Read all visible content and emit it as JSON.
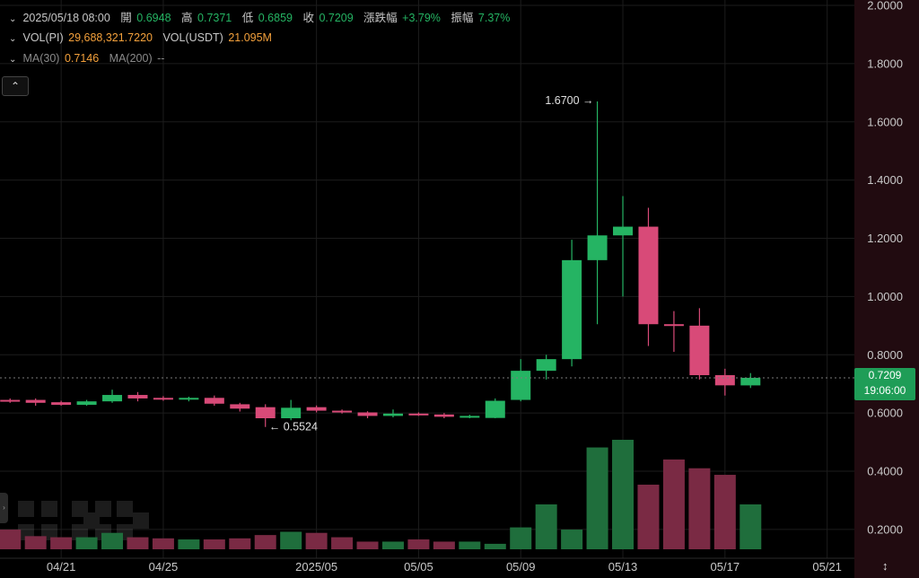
{
  "legend": {
    "row1": {
      "datetime": "2025/05/18 08:00",
      "open_label": "開",
      "open": "0.6948",
      "high_label": "高",
      "high": "0.7371",
      "low_label": "低",
      "low": "0.6859",
      "close_label": "收",
      "close": "0.7209",
      "change_label": "漲跌幅",
      "change": "+3.79%",
      "amplitude_label": "振幅",
      "amplitude": "7.37%"
    },
    "row2": {
      "vol_pi_label": "VOL(PI)",
      "vol_pi": "29,688,321.7220",
      "vol_usdt_label": "VOL(USDT)",
      "vol_usdt": "21.095M"
    },
    "row3": {
      "ma30_label": "MA(30)",
      "ma30": "0.7146",
      "ma200_label": "MA(200)",
      "ma200": "--"
    }
  },
  "price_tag": {
    "price": "0.7209",
    "countdown": "19:06:00"
  },
  "colors": {
    "up": "#25b463",
    "down": "#d84a78",
    "up_vol": "#1f6e3c",
    "down_vol": "#7a2a44",
    "axis_bg": "#210b10"
  },
  "icons": {
    "collapse": "chevron-up-icon",
    "side": "side-tab-icon",
    "scale": "vertical-scale-icon",
    "logo": "okx-watermark-logo"
  },
  "chart_data": {
    "type": "candlestick",
    "x_ticks": [
      "04/21",
      "04/25",
      "2025/05",
      "05/05",
      "05/09",
      "05/13",
      "05/17",
      "05/21"
    ],
    "y_ticks": [
      "2.0000",
      "1.8000",
      "1.6000",
      "1.4000",
      "1.2000",
      "1.0000",
      "0.8000",
      "0.6000",
      "0.4000",
      "0.2000"
    ],
    "ylim": [
      0,
      2.0
    ],
    "annotations": {
      "max_label": "1.6700",
      "min_label": "0.5524"
    },
    "candles": [
      {
        "date": "04/19",
        "o": 0.645,
        "h": 0.65,
        "l": 0.635,
        "c": 0.64
      },
      {
        "date": "04/20",
        "o": 0.645,
        "h": 0.65,
        "l": 0.625,
        "c": 0.635
      },
      {
        "date": "04/21",
        "o": 0.637,
        "h": 0.642,
        "l": 0.625,
        "c": 0.628
      },
      {
        "date": "04/22",
        "o": 0.628,
        "h": 0.645,
        "l": 0.625,
        "c": 0.64
      },
      {
        "date": "04/23",
        "o": 0.64,
        "h": 0.68,
        "l": 0.635,
        "c": 0.662
      },
      {
        "date": "04/24",
        "o": 0.662,
        "h": 0.672,
        "l": 0.64,
        "c": 0.65
      },
      {
        "date": "04/25",
        "o": 0.652,
        "h": 0.658,
        "l": 0.642,
        "c": 0.648
      },
      {
        "date": "04/26",
        "o": 0.648,
        "h": 0.656,
        "l": 0.64,
        "c": 0.652
      },
      {
        "date": "04/27",
        "o": 0.652,
        "h": 0.66,
        "l": 0.625,
        "c": 0.632
      },
      {
        "date": "04/28",
        "o": 0.63,
        "h": 0.635,
        "l": 0.605,
        "c": 0.615
      },
      {
        "date": "04/29",
        "o": 0.62,
        "h": 0.63,
        "l": 0.552,
        "c": 0.582
      },
      {
        "date": "04/30",
        "o": 0.582,
        "h": 0.645,
        "l": 0.575,
        "c": 0.618
      },
      {
        "date": "05/01",
        "o": 0.62,
        "h": 0.626,
        "l": 0.602,
        "c": 0.608
      },
      {
        "date": "05/02",
        "o": 0.608,
        "h": 0.612,
        "l": 0.598,
        "c": 0.602
      },
      {
        "date": "05/03",
        "o": 0.602,
        "h": 0.606,
        "l": 0.582,
        "c": 0.59
      },
      {
        "date": "05/04",
        "o": 0.59,
        "h": 0.612,
        "l": 0.585,
        "c": 0.598
      },
      {
        "date": "05/05",
        "o": 0.598,
        "h": 0.602,
        "l": 0.59,
        "c": 0.595
      },
      {
        "date": "05/06",
        "o": 0.595,
        "h": 0.6,
        "l": 0.582,
        "c": 0.587
      },
      {
        "date": "05/07",
        "o": 0.585,
        "h": 0.594,
        "l": 0.582,
        "c": 0.59
      },
      {
        "date": "05/08",
        "o": 0.583,
        "h": 0.65,
        "l": 0.582,
        "c": 0.642
      },
      {
        "date": "05/09",
        "o": 0.645,
        "h": 0.785,
        "l": 0.64,
        "c": 0.745
      },
      {
        "date": "05/10",
        "o": 0.745,
        "h": 0.8,
        "l": 0.715,
        "c": 0.785
      },
      {
        "date": "05/11",
        "o": 0.785,
        "h": 1.195,
        "l": 0.76,
        "c": 1.125
      },
      {
        "date": "05/12",
        "o": 1.125,
        "h": 1.67,
        "l": 0.905,
        "c": 1.21
      },
      {
        "date": "05/13",
        "o": 1.21,
        "h": 1.345,
        "l": 1.0,
        "c": 1.24
      },
      {
        "date": "05/14",
        "o": 1.24,
        "h": 1.305,
        "l": 0.83,
        "c": 0.905
      },
      {
        "date": "05/15",
        "o": 0.905,
        "h": 0.95,
        "l": 0.81,
        "c": 0.9
      },
      {
        "date": "05/16",
        "o": 0.9,
        "h": 0.96,
        "l": 0.715,
        "c": 0.73
      },
      {
        "date": "05/17",
        "o": 0.73,
        "h": 0.752,
        "l": 0.66,
        "c": 0.695
      },
      {
        "date": "05/18",
        "o": 0.6948,
        "h": 0.7371,
        "l": 0.6859,
        "c": 0.7209
      }
    ],
    "volume_relative": [
      0.18,
      0.12,
      0.11,
      0.11,
      0.15,
      0.11,
      0.1,
      0.09,
      0.09,
      0.1,
      0.13,
      0.16,
      0.15,
      0.11,
      0.07,
      0.07,
      0.09,
      0.07,
      0.07,
      0.05,
      0.2,
      0.41,
      0.18,
      0.93,
      1.0,
      0.59,
      0.82,
      0.74,
      0.68,
      0.41
    ]
  }
}
